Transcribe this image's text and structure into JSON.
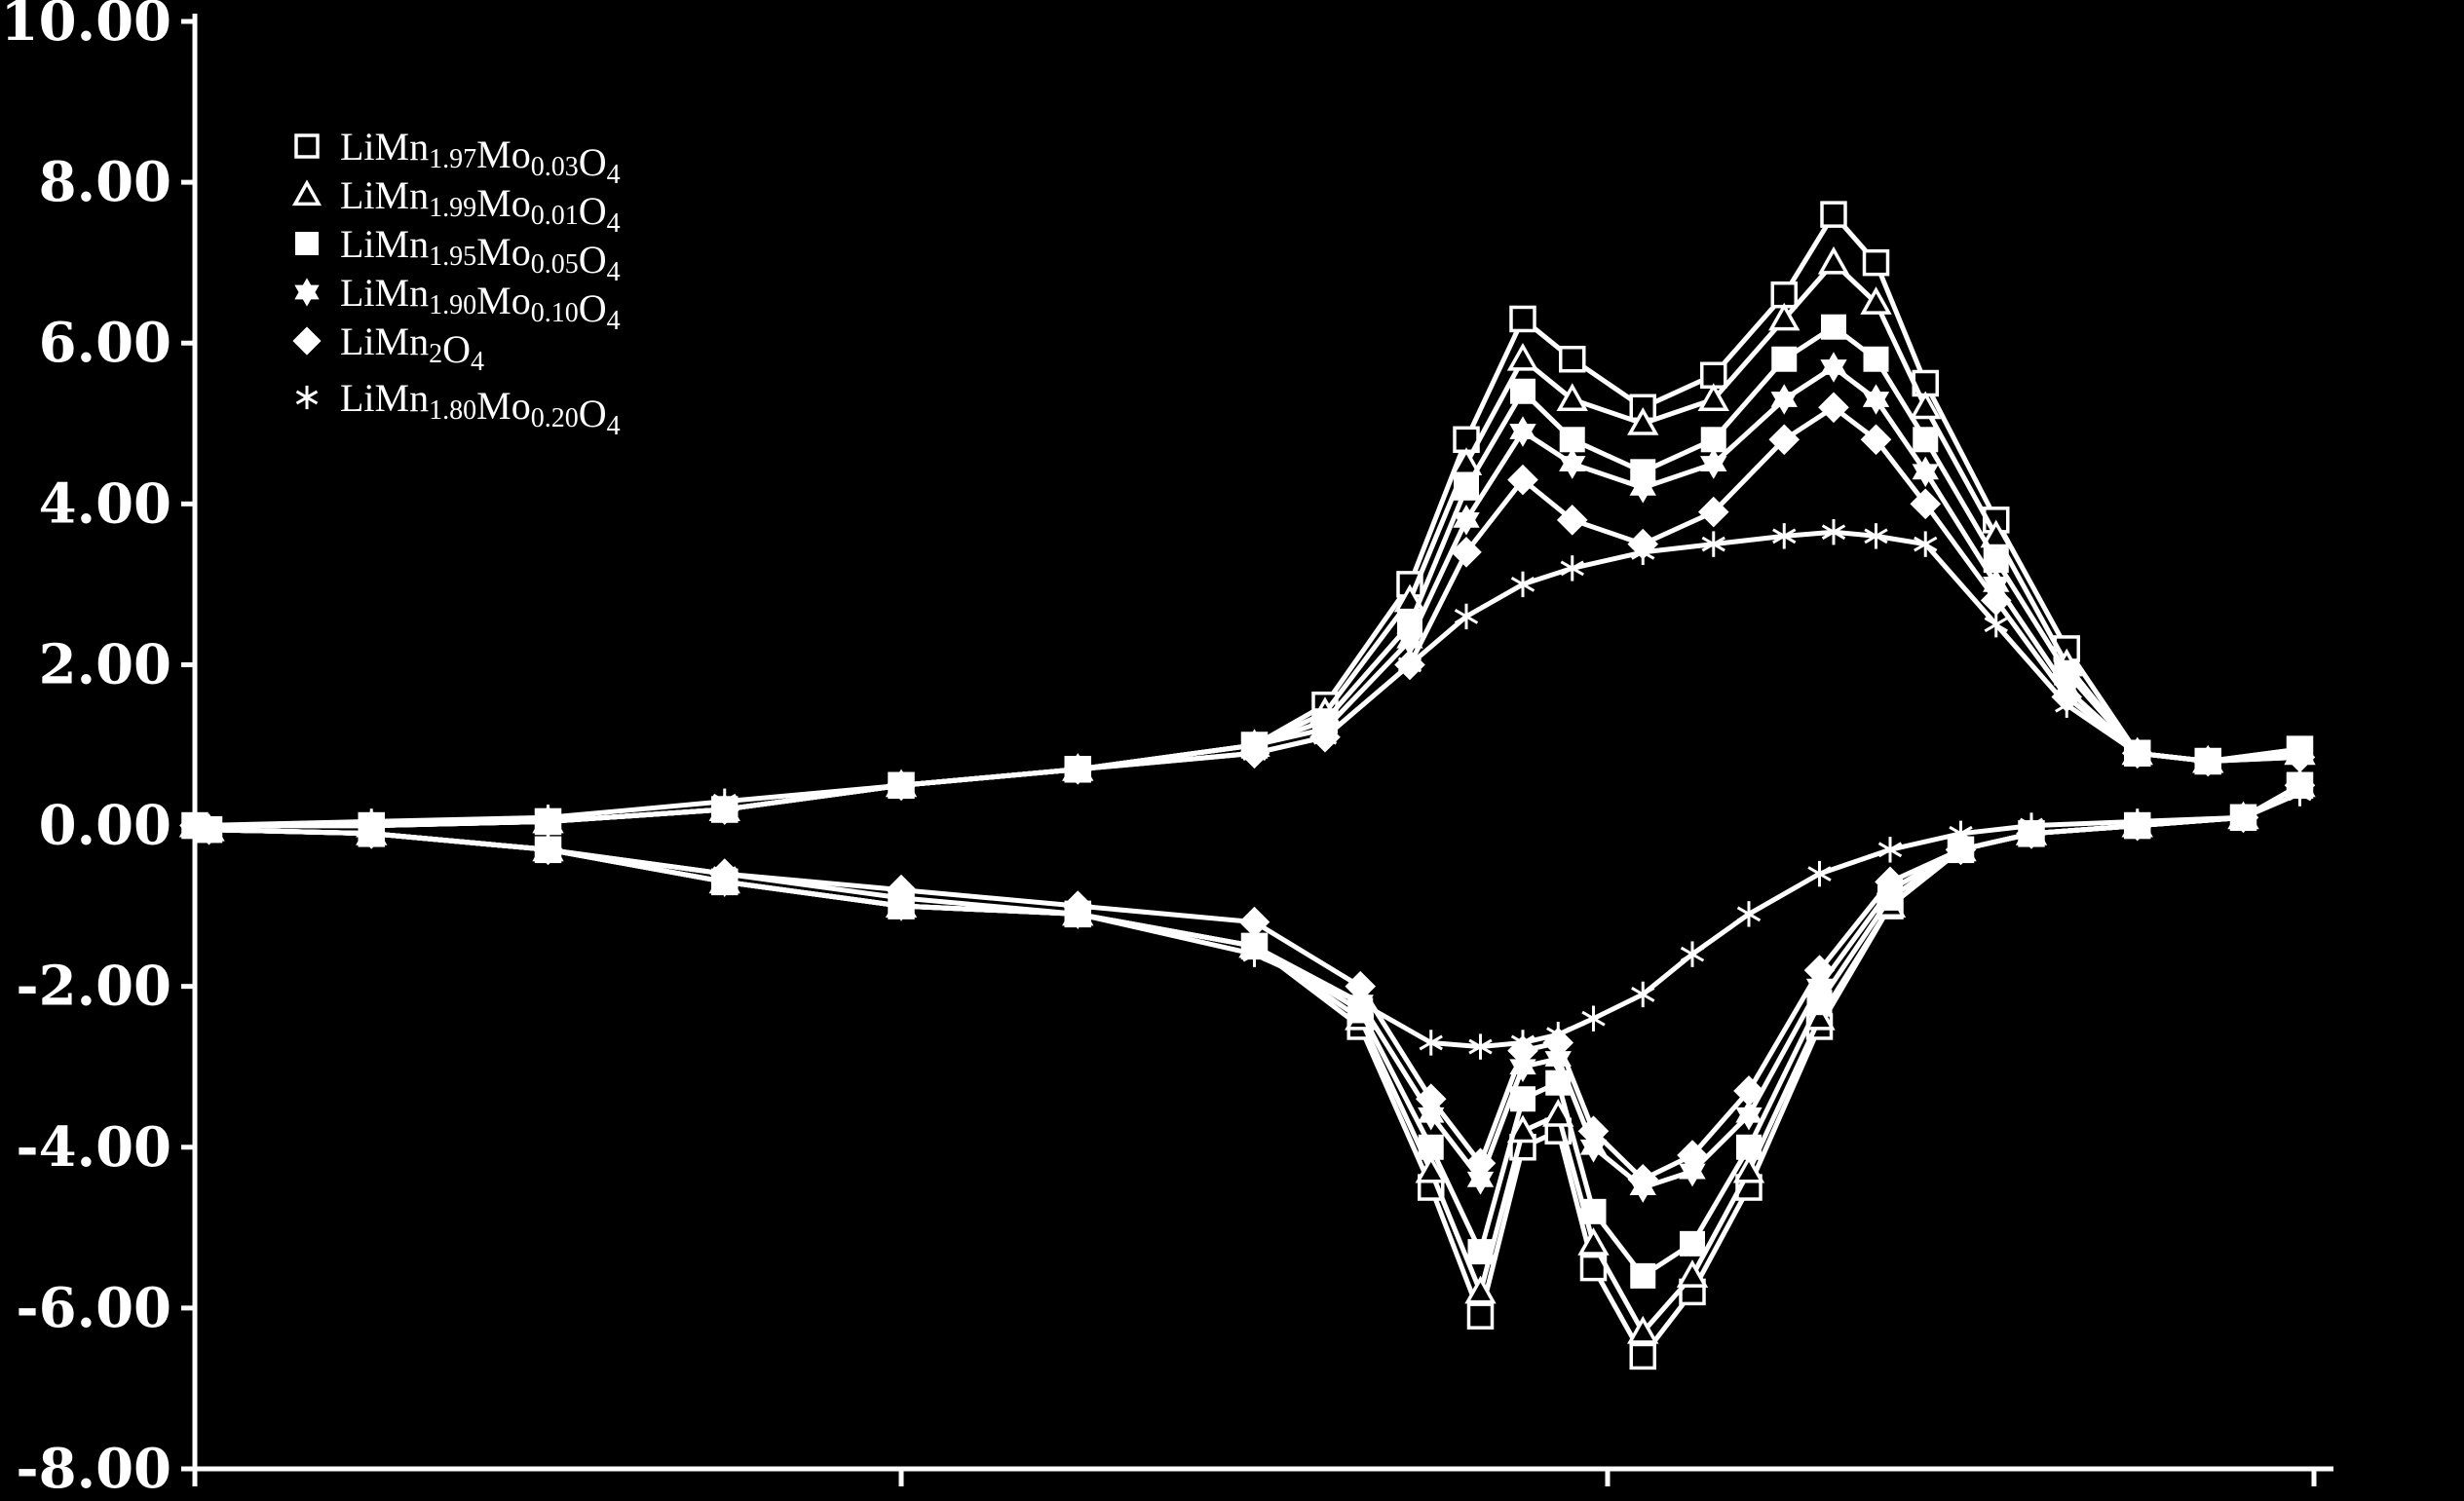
{
  "chart_data": {
    "type": "line",
    "title": "",
    "xlabel": "",
    "ylabel": "",
    "x_range": [
      0,
      3
    ],
    "ylim": [
      -8,
      10
    ],
    "y_ticks": [
      {
        "value": 10,
        "label": "10.00"
      },
      {
        "value": 8,
        "label": "8.00"
      },
      {
        "value": 6,
        "label": "6.00"
      },
      {
        "value": 4,
        "label": "4.00"
      },
      {
        "value": 2,
        "label": "2.00"
      },
      {
        "value": 0,
        "label": "0.00"
      },
      {
        "value": -2,
        "label": "-2.00"
      },
      {
        "value": -4,
        "label": "-4.00"
      },
      {
        "value": -6,
        "label": "-6.00"
      },
      {
        "value": -8,
        "label": "-8.00"
      }
    ],
    "x_tick_positions": [
      0,
      1,
      2,
      3
    ],
    "grid": false,
    "legend_position": "top-left",
    "colors": {
      "background": "#000000",
      "foreground": "#ffffff"
    },
    "series": [
      {
        "name": "LiMn1.97Mo0.03O4",
        "marker": "square-open",
        "anodic": {
          "x": [
            0,
            0.25,
            0.5,
            0.75,
            1,
            1.25,
            1.5,
            1.6,
            1.72,
            1.8,
            1.88,
            1.95,
            2.05,
            2.15,
            2.25,
            2.32,
            2.38,
            2.45,
            2.55,
            2.65,
            2.75,
            2.85,
            2.98
          ],
          "y": [
            0,
            0,
            0.05,
            0.2,
            0.5,
            0.7,
            1.0,
            1.5,
            3.0,
            4.8,
            6.3,
            5.8,
            5.2,
            5.6,
            6.6,
            7.6,
            7.0,
            5.5,
            3.8,
            2.2,
            0.9,
            0.8,
            0.95
          ]
        },
        "cathodic": {
          "x": [
            0.02,
            0.25,
            0.5,
            0.75,
            1,
            1.25,
            1.5,
            1.65,
            1.75,
            1.82,
            1.88,
            1.93,
            1.98,
            2.05,
            2.12,
            2.2,
            2.3,
            2.4,
            2.5,
            2.6,
            2.75,
            2.9,
            2.98
          ],
          "y": [
            -0.05,
            -0.1,
            -0.3,
            -0.7,
            -1.0,
            -1.1,
            -1.5,
            -2.5,
            -4.5,
            -6.1,
            -4.0,
            -3.8,
            -5.5,
            -6.6,
            -5.8,
            -4.5,
            -2.5,
            -1.0,
            -0.3,
            -0.1,
            0,
            0.1,
            0.5
          ]
        }
      },
      {
        "name": "LiMn1.99Mo0.01O4",
        "marker": "triangle-open",
        "anodic": {
          "x": [
            0,
            0.25,
            0.5,
            0.75,
            1,
            1.25,
            1.5,
            1.6,
            1.72,
            1.8,
            1.88,
            1.95,
            2.05,
            2.15,
            2.25,
            2.32,
            2.38,
            2.45,
            2.55,
            2.65,
            2.75,
            2.85,
            2.98
          ],
          "y": [
            0,
            0,
            0.05,
            0.2,
            0.5,
            0.7,
            1.0,
            1.4,
            2.8,
            4.5,
            5.8,
            5.3,
            5.0,
            5.3,
            6.3,
            7.0,
            6.5,
            5.2,
            3.6,
            2.0,
            0.9,
            0.8,
            0.9
          ]
        },
        "cathodic": {
          "x": [
            0.02,
            0.25,
            0.5,
            0.75,
            1,
            1.25,
            1.5,
            1.65,
            1.75,
            1.82,
            1.88,
            1.93,
            1.98,
            2.05,
            2.12,
            2.2,
            2.3,
            2.4,
            2.5,
            2.6,
            2.75,
            2.9,
            2.98
          ],
          "y": [
            -0.05,
            -0.1,
            -0.3,
            -0.7,
            -1.0,
            -1.1,
            -1.5,
            -2.4,
            -4.3,
            -5.8,
            -3.8,
            -3.6,
            -5.2,
            -6.3,
            -5.6,
            -4.3,
            -2.4,
            -1.0,
            -0.3,
            -0.1,
            0,
            0.1,
            0.5
          ]
        }
      },
      {
        "name": "LiMn1.95Mo0.05O4",
        "marker": "square-solid",
        "anodic": {
          "x": [
            0,
            0.25,
            0.5,
            0.75,
            1,
            1.25,
            1.5,
            1.6,
            1.72,
            1.8,
            1.88,
            1.95,
            2.05,
            2.15,
            2.25,
            2.32,
            2.38,
            2.45,
            2.55,
            2.65,
            2.75,
            2.85,
            2.98
          ],
          "y": [
            0,
            0,
            0.05,
            0.2,
            0.5,
            0.7,
            1.0,
            1.3,
            2.5,
            4.2,
            5.4,
            4.8,
            4.4,
            4.8,
            5.8,
            6.2,
            5.8,
            4.8,
            3.3,
            1.9,
            0.9,
            0.8,
            0.95
          ]
        },
        "cathodic": {
          "x": [
            0.02,
            0.25,
            0.5,
            0.75,
            1,
            1.25,
            1.5,
            1.65,
            1.75,
            1.82,
            1.88,
            1.93,
            1.98,
            2.05,
            2.12,
            2.2,
            2.3,
            2.4,
            2.5,
            2.6,
            2.75,
            2.9,
            2.98
          ],
          "y": [
            -0.05,
            -0.1,
            -0.3,
            -0.7,
            -1.0,
            -1.1,
            -1.5,
            -2.3,
            -4.0,
            -5.3,
            -3.4,
            -3.2,
            -4.8,
            -5.6,
            -5.2,
            -4.0,
            -2.2,
            -0.9,
            -0.3,
            -0.1,
            0,
            0.1,
            0.5
          ]
        }
      },
      {
        "name": "LiMn1.90Mo0.10O4",
        "marker": "star-solid",
        "anodic": {
          "x": [
            0,
            0.25,
            0.5,
            0.75,
            1,
            1.25,
            1.5,
            1.6,
            1.72,
            1.8,
            1.88,
            1.95,
            2.05,
            2.15,
            2.25,
            2.32,
            2.38,
            2.45,
            2.55,
            2.65,
            2.75,
            2.85,
            2.98
          ],
          "y": [
            0,
            0,
            0.05,
            0.2,
            0.5,
            0.7,
            1.0,
            1.2,
            2.3,
            3.8,
            4.9,
            4.5,
            4.2,
            4.5,
            5.3,
            5.7,
            5.3,
            4.4,
            3.0,
            1.7,
            0.9,
            0.8,
            0.9
          ]
        },
        "cathodic": {
          "x": [
            0.02,
            0.25,
            0.5,
            0.75,
            1,
            1.25,
            1.5,
            1.65,
            1.75,
            1.82,
            1.88,
            1.93,
            1.98,
            2.05,
            2.12,
            2.2,
            2.3,
            2.4,
            2.5,
            2.6,
            2.75,
            2.9,
            2.98
          ],
          "y": [
            -0.05,
            -0.1,
            -0.3,
            -0.7,
            -1.0,
            -1.1,
            -1.5,
            -2.2,
            -3.6,
            -4.4,
            -3.0,
            -2.9,
            -4.0,
            -4.5,
            -4.3,
            -3.6,
            -2.0,
            -0.8,
            -0.3,
            -0.1,
            0,
            0.1,
            0.5
          ]
        }
      },
      {
        "name": "LiMn2O4",
        "marker": "diamond-solid",
        "anodic": {
          "x": [
            0,
            0.25,
            0.5,
            0.75,
            1,
            1.25,
            1.5,
            1.6,
            1.72,
            1.8,
            1.88,
            1.95,
            2.05,
            2.15,
            2.25,
            2.32,
            2.38,
            2.45,
            2.55,
            2.65,
            2.75,
            2.85,
            2.98
          ],
          "y": [
            0,
            0,
            0.05,
            0.2,
            0.5,
            0.7,
            0.9,
            1.1,
            2.0,
            3.4,
            4.3,
            3.8,
            3.5,
            3.9,
            4.8,
            5.2,
            4.8,
            4.0,
            2.8,
            1.6,
            0.9,
            0.8,
            0.85
          ]
        },
        "cathodic": {
          "x": [
            0.02,
            0.25,
            0.5,
            0.75,
            1,
            1.25,
            1.5,
            1.65,
            1.75,
            1.82,
            1.88,
            1.93,
            1.98,
            2.05,
            2.12,
            2.2,
            2.3,
            2.4,
            2.5,
            2.6,
            2.75,
            2.9,
            2.98
          ],
          "y": [
            -0.05,
            -0.1,
            -0.3,
            -0.6,
            -0.8,
            -1.0,
            -1.2,
            -2.0,
            -3.4,
            -4.2,
            -2.8,
            -2.7,
            -3.8,
            -4.4,
            -4.1,
            -3.3,
            -1.8,
            -0.7,
            -0.3,
            -0.1,
            0,
            0.1,
            0.5
          ]
        }
      },
      {
        "name": "LiMn1.80Mo0.20O4",
        "marker": "asterisk",
        "anodic": {
          "x": [
            0,
            0.25,
            0.5,
            0.75,
            1,
            1.25,
            1.5,
            1.6,
            1.72,
            1.8,
            1.88,
            1.95,
            2.05,
            2.15,
            2.25,
            2.32,
            2.38,
            2.45,
            2.55,
            2.65,
            2.75,
            2.85,
            2.98
          ],
          "y": [
            0,
            0.05,
            0.1,
            0.3,
            0.5,
            0.7,
            0.9,
            1.1,
            2.0,
            2.6,
            3.0,
            3.2,
            3.4,
            3.5,
            3.6,
            3.65,
            3.6,
            3.5,
            2.5,
            1.5,
            0.9,
            0.8,
            0.85
          ]
        },
        "cathodic": {
          "x": [
            0.02,
            0.25,
            0.5,
            0.75,
            1,
            1.25,
            1.5,
            1.65,
            1.75,
            1.82,
            1.88,
            1.93,
            1.98,
            2.05,
            2.12,
            2.2,
            2.3,
            2.4,
            2.5,
            2.6,
            2.75,
            2.9,
            2.98
          ],
          "y": [
            -0.05,
            -0.1,
            -0.3,
            -0.6,
            -0.9,
            -1.1,
            -1.6,
            -2.2,
            -2.7,
            -2.75,
            -2.7,
            -2.6,
            -2.4,
            -2.1,
            -1.6,
            -1.1,
            -0.6,
            -0.3,
            -0.1,
            0,
            0.05,
            0.1,
            0.4
          ]
        }
      }
    ]
  }
}
